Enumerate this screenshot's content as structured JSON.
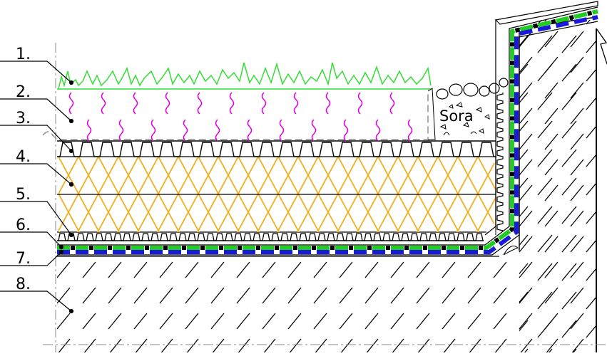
{
  "labels": [
    {
      "id": "1",
      "text": "1."
    },
    {
      "id": "2",
      "text": "2."
    },
    {
      "id": "3",
      "text": "3."
    },
    {
      "id": "4",
      "text": "4."
    },
    {
      "id": "5",
      "text": "5."
    },
    {
      "id": "6",
      "text": "6."
    },
    {
      "id": "7",
      "text": "7."
    },
    {
      "id": "8",
      "text": "8."
    }
  ],
  "gravel_label": "Sora",
  "colors": {
    "grass": "#33dd33",
    "substrate_squiggle": "#e000e0",
    "insulation": "#f0b020",
    "membrane_green": "#22cc22",
    "membrane_blue": "#1a1adc",
    "structure_hatch": "#000000",
    "lines": "#000000"
  },
  "icons": [
    "grass-icon",
    "squiggle-icon",
    "gravel-icon",
    "hatch-icon",
    "drainage-board-icon"
  ]
}
